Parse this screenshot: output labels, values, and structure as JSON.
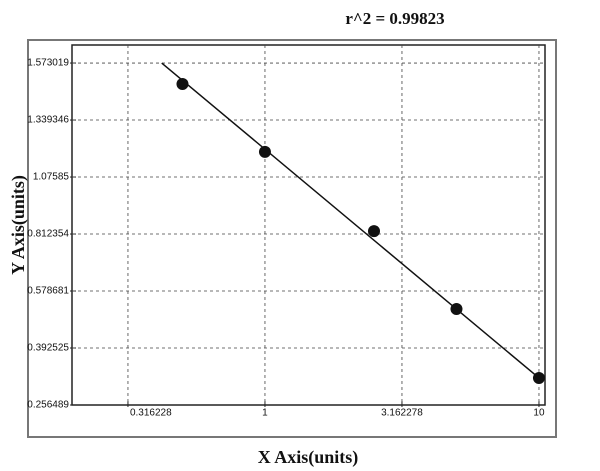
{
  "chart_data": {
    "type": "scatter",
    "title": "r^2 = 0.99823",
    "x_label": "X Axis(units)",
    "y_label": "Y Axis(units)",
    "x": [
      0.5,
      1,
      2.5,
      5,
      10
    ],
    "values": [
      1.487,
      1.192,
      0.826,
      0.52,
      0.321
    ],
    "color": "#111111",
    "fit": {
      "x": [
        0.42,
        10
      ],
      "y": [
        1.573019,
        0.321
      ]
    },
    "xscale": "log",
    "xlim": [
      0.1976,
      10.52
    ],
    "xticks": [
      0.316228,
      1,
      3.162278,
      10
    ],
    "ylim": [
      0.256489,
      1.647
    ],
    "yticks": [
      0.256489,
      0.392525,
      0.578681,
      0.812354,
      1.07585,
      1.339346,
      1.573019
    ],
    "grid": true
  }
}
